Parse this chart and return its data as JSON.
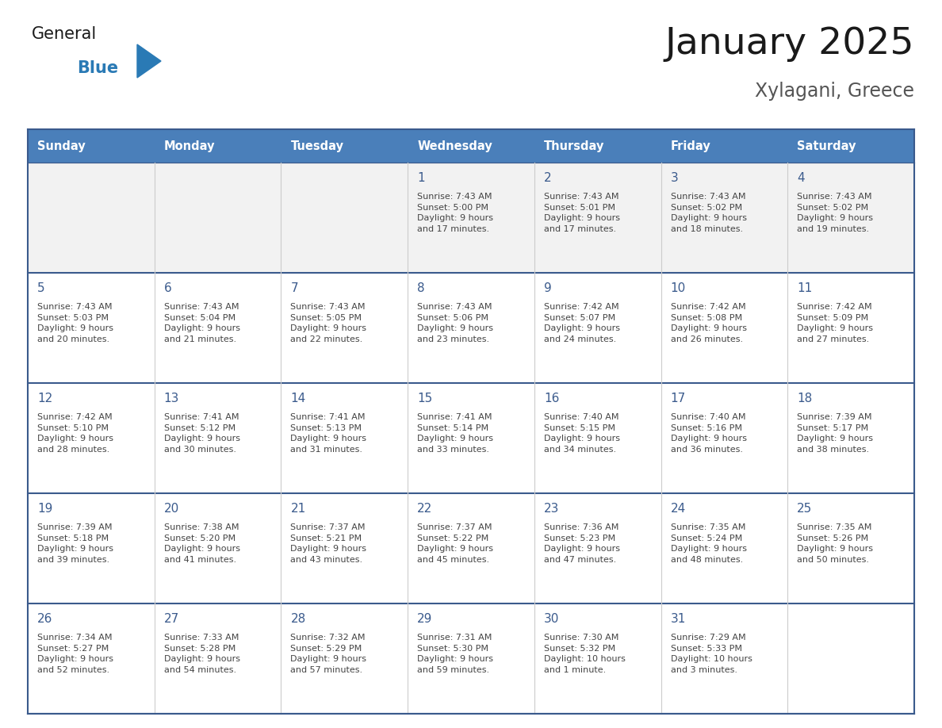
{
  "title": "January 2025",
  "subtitle": "Xylagani, Greece",
  "days_of_week": [
    "Sunday",
    "Monday",
    "Tuesday",
    "Wednesday",
    "Thursday",
    "Friday",
    "Saturday"
  ],
  "header_bg": "#4a7fba",
  "header_text": "#ffffff",
  "cell_bg_gray": "#f2f2f2",
  "cell_bg_white": "#ffffff",
  "row_separator_color": "#3a5a8c",
  "col_separator_color": "#cccccc",
  "day_num_color": "#3a5a8c",
  "info_color": "#444444",
  "title_color": "#1a1a1a",
  "subtitle_color": "#555555",
  "logo_general_color": "#1a1a1a",
  "logo_blue_color": "#2a7ab5",
  "logo_triangle_color": "#2a7ab5",
  "calendar_data": [
    [
      {
        "day": "",
        "info": ""
      },
      {
        "day": "",
        "info": ""
      },
      {
        "day": "",
        "info": ""
      },
      {
        "day": "1",
        "info": "Sunrise: 7:43 AM\nSunset: 5:00 PM\nDaylight: 9 hours\nand 17 minutes."
      },
      {
        "day": "2",
        "info": "Sunrise: 7:43 AM\nSunset: 5:01 PM\nDaylight: 9 hours\nand 17 minutes."
      },
      {
        "day": "3",
        "info": "Sunrise: 7:43 AM\nSunset: 5:02 PM\nDaylight: 9 hours\nand 18 minutes."
      },
      {
        "day": "4",
        "info": "Sunrise: 7:43 AM\nSunset: 5:02 PM\nDaylight: 9 hours\nand 19 minutes."
      }
    ],
    [
      {
        "day": "5",
        "info": "Sunrise: 7:43 AM\nSunset: 5:03 PM\nDaylight: 9 hours\nand 20 minutes."
      },
      {
        "day": "6",
        "info": "Sunrise: 7:43 AM\nSunset: 5:04 PM\nDaylight: 9 hours\nand 21 minutes."
      },
      {
        "day": "7",
        "info": "Sunrise: 7:43 AM\nSunset: 5:05 PM\nDaylight: 9 hours\nand 22 minutes."
      },
      {
        "day": "8",
        "info": "Sunrise: 7:43 AM\nSunset: 5:06 PM\nDaylight: 9 hours\nand 23 minutes."
      },
      {
        "day": "9",
        "info": "Sunrise: 7:42 AM\nSunset: 5:07 PM\nDaylight: 9 hours\nand 24 minutes."
      },
      {
        "day": "10",
        "info": "Sunrise: 7:42 AM\nSunset: 5:08 PM\nDaylight: 9 hours\nand 26 minutes."
      },
      {
        "day": "11",
        "info": "Sunrise: 7:42 AM\nSunset: 5:09 PM\nDaylight: 9 hours\nand 27 minutes."
      }
    ],
    [
      {
        "day": "12",
        "info": "Sunrise: 7:42 AM\nSunset: 5:10 PM\nDaylight: 9 hours\nand 28 minutes."
      },
      {
        "day": "13",
        "info": "Sunrise: 7:41 AM\nSunset: 5:12 PM\nDaylight: 9 hours\nand 30 minutes."
      },
      {
        "day": "14",
        "info": "Sunrise: 7:41 AM\nSunset: 5:13 PM\nDaylight: 9 hours\nand 31 minutes."
      },
      {
        "day": "15",
        "info": "Sunrise: 7:41 AM\nSunset: 5:14 PM\nDaylight: 9 hours\nand 33 minutes."
      },
      {
        "day": "16",
        "info": "Sunrise: 7:40 AM\nSunset: 5:15 PM\nDaylight: 9 hours\nand 34 minutes."
      },
      {
        "day": "17",
        "info": "Sunrise: 7:40 AM\nSunset: 5:16 PM\nDaylight: 9 hours\nand 36 minutes."
      },
      {
        "day": "18",
        "info": "Sunrise: 7:39 AM\nSunset: 5:17 PM\nDaylight: 9 hours\nand 38 minutes."
      }
    ],
    [
      {
        "day": "19",
        "info": "Sunrise: 7:39 AM\nSunset: 5:18 PM\nDaylight: 9 hours\nand 39 minutes."
      },
      {
        "day": "20",
        "info": "Sunrise: 7:38 AM\nSunset: 5:20 PM\nDaylight: 9 hours\nand 41 minutes."
      },
      {
        "day": "21",
        "info": "Sunrise: 7:37 AM\nSunset: 5:21 PM\nDaylight: 9 hours\nand 43 minutes."
      },
      {
        "day": "22",
        "info": "Sunrise: 7:37 AM\nSunset: 5:22 PM\nDaylight: 9 hours\nand 45 minutes."
      },
      {
        "day": "23",
        "info": "Sunrise: 7:36 AM\nSunset: 5:23 PM\nDaylight: 9 hours\nand 47 minutes."
      },
      {
        "day": "24",
        "info": "Sunrise: 7:35 AM\nSunset: 5:24 PM\nDaylight: 9 hours\nand 48 minutes."
      },
      {
        "day": "25",
        "info": "Sunrise: 7:35 AM\nSunset: 5:26 PM\nDaylight: 9 hours\nand 50 minutes."
      }
    ],
    [
      {
        "day": "26",
        "info": "Sunrise: 7:34 AM\nSunset: 5:27 PM\nDaylight: 9 hours\nand 52 minutes."
      },
      {
        "day": "27",
        "info": "Sunrise: 7:33 AM\nSunset: 5:28 PM\nDaylight: 9 hours\nand 54 minutes."
      },
      {
        "day": "28",
        "info": "Sunrise: 7:32 AM\nSunset: 5:29 PM\nDaylight: 9 hours\nand 57 minutes."
      },
      {
        "day": "29",
        "info": "Sunrise: 7:31 AM\nSunset: 5:30 PM\nDaylight: 9 hours\nand 59 minutes."
      },
      {
        "day": "30",
        "info": "Sunrise: 7:30 AM\nSunset: 5:32 PM\nDaylight: 10 hours\nand 1 minute."
      },
      {
        "day": "31",
        "info": "Sunrise: 7:29 AM\nSunset: 5:33 PM\nDaylight: 10 hours\nand 3 minutes."
      },
      {
        "day": "",
        "info": ""
      }
    ]
  ]
}
